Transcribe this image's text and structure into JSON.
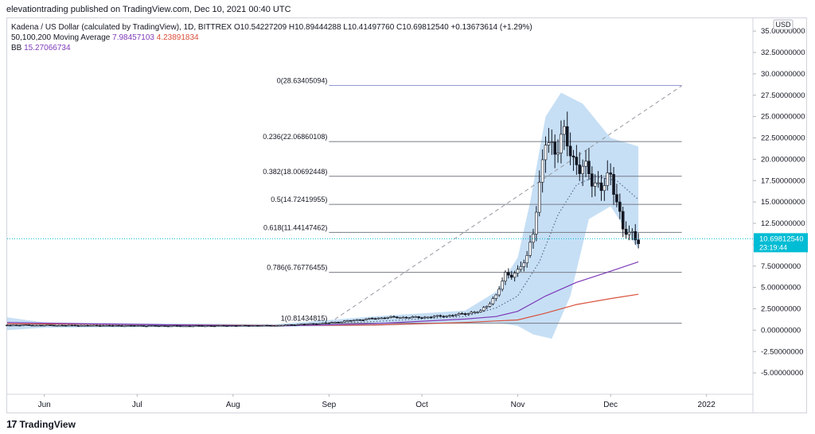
{
  "header": {
    "text": "elevationtrading published on TradingView.com, Dec 10, 2021 00:40 UTC"
  },
  "legend": {
    "symbol": "Kadena / US Dollar (calculated by TradingView), 1D, BITTREX",
    "ohlc": "O10.54227209  H10.89444288  L10.41497760  C10.69812540  +0.13673614 (+1.29%)",
    "ma_label": "50,100,200 Moving Average",
    "ma_v1": "7.98457103",
    "ma_v2": "4.23891834",
    "bb_label": "BB",
    "bb_v": "15.27066734"
  },
  "footer": {
    "brand": "TradingView",
    "logo": "17"
  },
  "chart_data": {
    "type": "candlestick",
    "currency": "USD",
    "price_label": "10.69812540",
    "countdown_label": "23:19:44",
    "last_price": 10.6981254,
    "ylim": [
      -7.5,
      36.5
    ],
    "y_ticks": [
      35,
      32.5,
      30,
      27.5,
      25,
      22.5,
      20,
      17.5,
      15,
      12.5,
      10,
      7.5,
      5,
      2.5,
      0,
      -2.5,
      -5
    ],
    "y_tick_labels": [
      "35.00000000",
      "32.50000000",
      "30.00000000",
      "27.50000000",
      "25.00000000",
      "22.50000000",
      "20.00000000",
      "17.50000000",
      "15.00000000",
      "12.50000000",
      "10.00000000",
      "7.50000000",
      "5.00000000",
      "2.50000000",
      "0.00000000",
      "-2.50000000",
      "-5.00000000"
    ],
    "x_start": "2021-05-20",
    "x_end": "2022-01-16",
    "x_ticks": [
      {
        "date": "2021-06-01",
        "label": "Jun"
      },
      {
        "date": "2021-07-01",
        "label": "Jul"
      },
      {
        "date": "2021-08-01",
        "label": "Aug"
      },
      {
        "date": "2021-09-01",
        "label": "Sep"
      },
      {
        "date": "2021-10-01",
        "label": "Oct"
      },
      {
        "date": "2021-11-01",
        "label": "Nov"
      },
      {
        "date": "2021-12-01",
        "label": "Dec"
      },
      {
        "date": "2022-01-01",
        "label": "2022"
      }
    ],
    "fib_levels": [
      {
        "level": 28.63405094,
        "label": "0(28.63405094)"
      },
      {
        "level": 22.06860108,
        "label": "0.236(22.06860108)"
      },
      {
        "level": 18.00692448,
        "label": "0.382(18.00692448)"
      },
      {
        "level": 14.72419955,
        "label": "0.5(14.72419955)"
      },
      {
        "level": 11.44147462,
        "label": "0.618(11.44147462)"
      },
      {
        "level": 6.76776455,
        "label": "0.786(6.76776455)"
      },
      {
        "level": 0.81434815,
        "label": "1(0.81434815)"
      }
    ],
    "fib_start": "2021-09-01",
    "fib_end": "2021-12-24",
    "trend_line": [
      {
        "date": "2021-09-01",
        "value": 0.81
      },
      {
        "date": "2021-12-24",
        "value": 28.6
      }
    ],
    "key_points": [
      {
        "date": "2021-05-20",
        "value": 0.6
      },
      {
        "date": "2021-06-15",
        "value": 0.55
      },
      {
        "date": "2021-07-15",
        "value": 0.5
      },
      {
        "date": "2021-08-15",
        "value": 0.55
      },
      {
        "date": "2021-09-01",
        "value": 0.85
      },
      {
        "date": "2021-09-10",
        "value": 1.2
      },
      {
        "date": "2021-09-20",
        "value": 1.5
      },
      {
        "date": "2021-10-01",
        "value": 1.5
      },
      {
        "date": "2021-10-10",
        "value": 1.7
      },
      {
        "date": "2021-10-20",
        "value": 2.2
      },
      {
        "date": "2021-10-25",
        "value": 4.0
      },
      {
        "date": "2021-10-28",
        "value": 6.5
      },
      {
        "date": "2021-11-01",
        "value": 6.8
      },
      {
        "date": "2021-11-04",
        "value": 8.5
      },
      {
        "date": "2021-11-06",
        "value": 12.0
      },
      {
        "date": "2021-11-08",
        "value": 16.5
      },
      {
        "date": "2021-11-10",
        "value": 22.0
      },
      {
        "date": "2021-11-13",
        "value": 21.5
      },
      {
        "date": "2021-11-16",
        "value": 22.5
      },
      {
        "date": "2021-11-19",
        "value": 20.0
      },
      {
        "date": "2021-11-22",
        "value": 19.0
      },
      {
        "date": "2021-11-25",
        "value": 17.5
      },
      {
        "date": "2021-11-28",
        "value": 17.0
      },
      {
        "date": "2021-12-01",
        "value": 17.5
      },
      {
        "date": "2021-12-03",
        "value": 15.5
      },
      {
        "date": "2021-12-05",
        "value": 12.0
      },
      {
        "date": "2021-12-07",
        "value": 11.0
      },
      {
        "date": "2021-12-10",
        "value": 10.7
      }
    ],
    "ma50": [
      {
        "date": "2021-05-20",
        "value": 0.9
      },
      {
        "date": "2021-06-15",
        "value": 0.75
      },
      {
        "date": "2021-07-15",
        "value": 0.6
      },
      {
        "date": "2021-08-15",
        "value": 0.5
      },
      {
        "date": "2021-09-15",
        "value": 0.75
      },
      {
        "date": "2021-10-15",
        "value": 1.3
      },
      {
        "date": "2021-10-25",
        "value": 1.6
      },
      {
        "date": "2021-11-01",
        "value": 2.2
      },
      {
        "date": "2021-11-10",
        "value": 4.0
      },
      {
        "date": "2021-11-20",
        "value": 5.6
      },
      {
        "date": "2021-12-01",
        "value": 6.9
      },
      {
        "date": "2021-12-10",
        "value": 8.0
      }
    ],
    "ma100": [
      {
        "date": "2021-05-20",
        "value": 0.75
      },
      {
        "date": "2021-06-15",
        "value": 0.7
      },
      {
        "date": "2021-07-15",
        "value": 0.62
      },
      {
        "date": "2021-08-15",
        "value": 0.55
      },
      {
        "date": "2021-09-15",
        "value": 0.6
      },
      {
        "date": "2021-10-15",
        "value": 0.9
      },
      {
        "date": "2021-11-01",
        "value": 1.2
      },
      {
        "date": "2021-11-10",
        "value": 2.0
      },
      {
        "date": "2021-11-20",
        "value": 3.0
      },
      {
        "date": "2021-12-01",
        "value": 3.7
      },
      {
        "date": "2021-12-10",
        "value": 4.2
      }
    ],
    "bb_basis": [
      {
        "date": "2021-05-20",
        "value": 0.6
      },
      {
        "date": "2021-08-15",
        "value": 0.55
      },
      {
        "date": "2021-09-15",
        "value": 1.0
      },
      {
        "date": "2021-10-15",
        "value": 1.6
      },
      {
        "date": "2021-10-25",
        "value": 2.6
      },
      {
        "date": "2021-11-01",
        "value": 4.0
      },
      {
        "date": "2021-11-08",
        "value": 8.0
      },
      {
        "date": "2021-11-14",
        "value": 13.5
      },
      {
        "date": "2021-11-20",
        "value": 17.0
      },
      {
        "date": "2021-11-26",
        "value": 18.0
      },
      {
        "date": "2021-12-03",
        "value": 17.5
      },
      {
        "date": "2021-12-10",
        "value": 15.3
      }
    ],
    "bb_upper": [
      {
        "date": "2021-05-20",
        "value": 1.5
      },
      {
        "date": "2021-06-01",
        "value": 0.9
      },
      {
        "date": "2021-08-15",
        "value": 0.7
      },
      {
        "date": "2021-09-15",
        "value": 1.6
      },
      {
        "date": "2021-10-15",
        "value": 2.3
      },
      {
        "date": "2021-10-25",
        "value": 4.5
      },
      {
        "date": "2021-11-01",
        "value": 8.5
      },
      {
        "date": "2021-11-05",
        "value": 15.0
      },
      {
        "date": "2021-11-10",
        "value": 25.0
      },
      {
        "date": "2021-11-15",
        "value": 27.8
      },
      {
        "date": "2021-11-22",
        "value": 26.5
      },
      {
        "date": "2021-12-01",
        "value": 22.5
      },
      {
        "date": "2021-12-10",
        "value": 21.5
      }
    ],
    "bb_lower": [
      {
        "date": "2021-05-20",
        "value": 0.0
      },
      {
        "date": "2021-06-01",
        "value": 0.3
      },
      {
        "date": "2021-08-15",
        "value": 0.4
      },
      {
        "date": "2021-09-15",
        "value": 0.5
      },
      {
        "date": "2021-10-15",
        "value": 0.8
      },
      {
        "date": "2021-10-25",
        "value": 0.9
      },
      {
        "date": "2021-11-01",
        "value": 0.5
      },
      {
        "date": "2021-11-06",
        "value": -0.5
      },
      {
        "date": "2021-11-12",
        "value": -1.0
      },
      {
        "date": "2021-11-18",
        "value": 4.0
      },
      {
        "date": "2021-11-24",
        "value": 13.0
      },
      {
        "date": "2021-12-01",
        "value": 14.5
      },
      {
        "date": "2021-12-10",
        "value": 9.5
      }
    ],
    "colors": {
      "candle": "#131722",
      "fib": "#787b86",
      "fib_top": "#9598d6",
      "trend": "#9598a1",
      "ma50": "#7e3ab8",
      "ma100": "#d94f3a",
      "bb_fill": "#b3d4f2",
      "bb_basis": "#5a6a8a",
      "price_badge": "#00bcd4"
    }
  }
}
